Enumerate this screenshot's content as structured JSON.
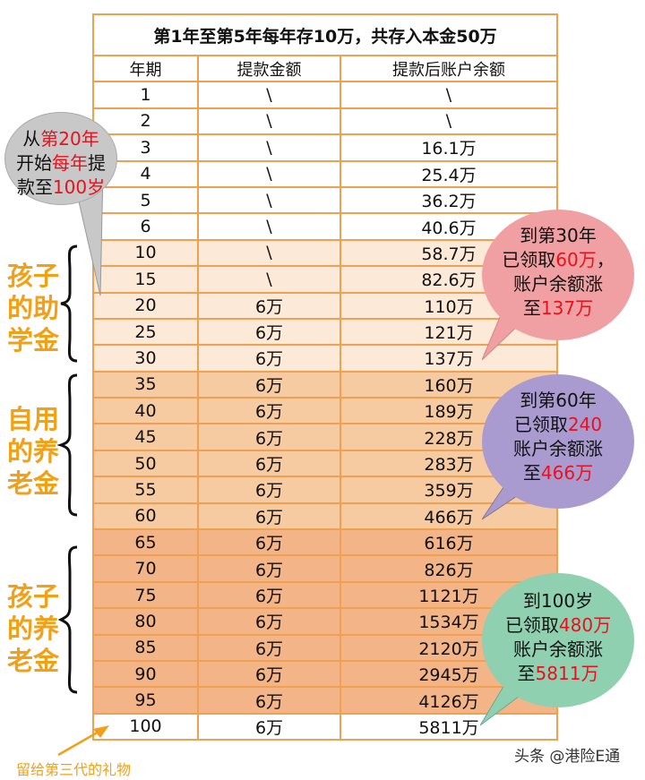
{
  "table": {
    "title": "第1年至第5年每年存10万，共存入本金50万",
    "headers": [
      "年期",
      "提款金额",
      "提款后账户余额"
    ],
    "rows": [
      {
        "year": "1",
        "withdraw": "\\",
        "balance": "\\",
        "shade": 0
      },
      {
        "year": "2",
        "withdraw": "\\",
        "balance": "\\",
        "shade": 0
      },
      {
        "year": "3",
        "withdraw": "\\",
        "balance": "16.1万",
        "shade": 0
      },
      {
        "year": "4",
        "withdraw": "\\",
        "balance": "25.4万",
        "shade": 0
      },
      {
        "year": "5",
        "withdraw": "\\",
        "balance": "36.2万",
        "shade": 0
      },
      {
        "year": "6",
        "withdraw": "\\",
        "balance": "40.6万",
        "shade": 0
      },
      {
        "year": "10",
        "withdraw": "\\",
        "balance": "58.7万",
        "shade": 1
      },
      {
        "year": "15",
        "withdraw": "\\",
        "balance": "82.6万",
        "shade": 1
      },
      {
        "year": "20",
        "withdraw": "6万",
        "balance": "110万",
        "shade": 1
      },
      {
        "year": "25",
        "withdraw": "6万",
        "balance": "121万",
        "shade": 1
      },
      {
        "year": "30",
        "withdraw": "6万",
        "balance": "137万",
        "shade": 1
      },
      {
        "year": "35",
        "withdraw": "6万",
        "balance": "160万",
        "shade": 2
      },
      {
        "year": "40",
        "withdraw": "6万",
        "balance": "189万",
        "shade": 2
      },
      {
        "year": "45",
        "withdraw": "6万",
        "balance": "228万",
        "shade": 2
      },
      {
        "year": "50",
        "withdraw": "6万",
        "balance": "283万",
        "shade": 2
      },
      {
        "year": "55",
        "withdraw": "6万",
        "balance": "359万",
        "shade": 2
      },
      {
        "year": "60",
        "withdraw": "6万",
        "balance": "466万",
        "shade": 2
      },
      {
        "year": "65",
        "withdraw": "6万",
        "balance": "616万",
        "shade": 3
      },
      {
        "year": "70",
        "withdraw": "6万",
        "balance": "826万",
        "shade": 3
      },
      {
        "year": "75",
        "withdraw": "6万",
        "balance": "1121万",
        "shade": 3
      },
      {
        "year": "80",
        "withdraw": "6万",
        "balance": "1534万",
        "shade": 3
      },
      {
        "year": "85",
        "withdraw": "6万",
        "balance": "2120万",
        "shade": 3
      },
      {
        "year": "90",
        "withdraw": "6万",
        "balance": "2945万",
        "shade": 3
      },
      {
        "year": "95",
        "withdraw": "6万",
        "balance": "4126万",
        "shade": 3
      },
      {
        "year": "100",
        "withdraw": "6万",
        "balance": "5811万",
        "shade": 0
      }
    ]
  },
  "side_labels": {
    "child_study": [
      "孩子",
      "的助",
      "学金"
    ],
    "self_pension": [
      "自用",
      "的养",
      "老金"
    ],
    "child_pension": [
      "孩子",
      "的养",
      "老金"
    ]
  },
  "bubbles": {
    "gray": {
      "l1a": "从",
      "l1b": "第20年",
      "l2a": "开始",
      "l2b": "每年",
      "l2c": "提",
      "l3a": "款至",
      "l3b": "100岁",
      "color": "#c8c8c8"
    },
    "pink": {
      "l1": "到第30年",
      "l2a": "已领取",
      "l2b": "60万",
      "l2c": "，",
      "l3": "账户余额涨",
      "l4a": "至",
      "l4b": "137万",
      "color": "#f0a0a2"
    },
    "purple": {
      "l1": "到第60年",
      "l2a": "已领取",
      "l2b": "240",
      "l3": "账户余额涨",
      "l4a": "至",
      "l4b": "466万",
      "color": "#a99bd0"
    },
    "green": {
      "l1": "到100岁",
      "l2a": "已领取",
      "l2b": "480万",
      "l3": "账户余额涨",
      "l4a": "至",
      "l4b": "5811万",
      "color": "#8ed0b0"
    }
  },
  "footer_note": "留给第三代的礼物",
  "watermark": "头条 @港险E通",
  "colors": {
    "border": "#f0a050",
    "side_label": "#f2a018",
    "highlight": "#e8111c"
  }
}
